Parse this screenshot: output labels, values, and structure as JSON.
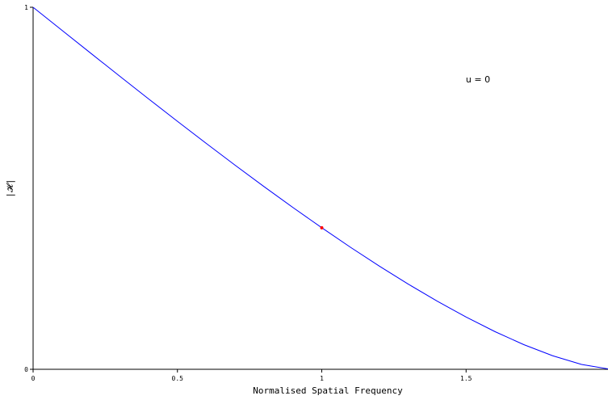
{
  "chart_data": {
    "type": "line",
    "x_label": "Normalised Spatial Frequency",
    "y_label": "|𝓗|",
    "annotation": "u = 0",
    "x": [
      0,
      0.1,
      0.2,
      0.3,
      0.4,
      0.5,
      0.6,
      0.7,
      0.8,
      0.9,
      1.0,
      1.1,
      1.2,
      1.3,
      1.4,
      1.5,
      1.6,
      1.7,
      1.8,
      1.9,
      2.0
    ],
    "series": [
      {
        "color": "#0000ff",
        "values": [
          1,
          0.9364,
          0.8729,
          0.8097,
          0.747,
          0.685,
          0.6238,
          0.5636,
          0.5046,
          0.447,
          0.391,
          0.3368,
          0.2848,
          0.2351,
          0.1881,
          0.1443,
          0.1041,
          0.0681,
          0.0374,
          0.0134,
          0
        ]
      }
    ],
    "marker": {
      "x": 1,
      "y": 0.391,
      "color": "#ff0000"
    },
    "xlim": [
      0,
      2
    ],
    "ylim": [
      0,
      1
    ],
    "xticks": [
      0,
      0.5,
      1,
      1.5
    ],
    "yticks": [
      0,
      1
    ]
  }
}
